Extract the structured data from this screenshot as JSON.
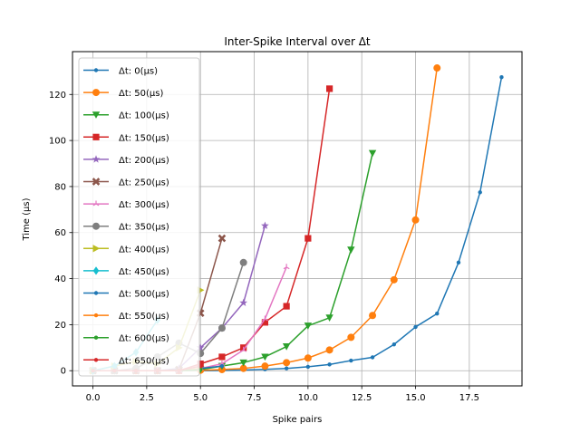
{
  "chart_data": {
    "type": "line",
    "title": "Inter-Spike Interval over Δt",
    "xlabel": "Spike pairs",
    "ylabel": "Time (μs)",
    "xlim": [
      -0.95,
      19.95
    ],
    "ylim": [
      -6.6,
      138.6
    ],
    "xticks": [
      0,
      2.5,
      5,
      7.5,
      10,
      12.5,
      15,
      17.5
    ],
    "xtick_labels": [
      "0.0",
      "2.5",
      "5.0",
      "7.5",
      "10.0",
      "12.5",
      "15.0",
      "17.5"
    ],
    "yticks": [
      0,
      20,
      40,
      60,
      80,
      100,
      120
    ],
    "ytick_labels": [
      "0",
      "20",
      "40",
      "60",
      "80",
      "100",
      "120"
    ],
    "grid": true,
    "legend_position": "upper-left",
    "series": [
      {
        "name": "Δt: 0(μs)",
        "color": "#1f77b4",
        "marker": "dot",
        "x": [
          0,
          1,
          2,
          3,
          4,
          5,
          6,
          7,
          8,
          9,
          10,
          11,
          12,
          13,
          14,
          15,
          16,
          17,
          18,
          19
        ],
        "y": [
          0,
          0,
          0,
          0,
          0,
          0,
          0.1,
          0.3,
          0.6,
          1,
          1.7,
          2.7,
          4.4,
          5.8,
          11.4,
          19,
          24.8,
          47,
          77.5,
          127.5
        ]
      },
      {
        "name": "Δt: 50(μs)",
        "color": "#ff7f0e",
        "marker": "circle",
        "x": [
          0,
          1,
          2,
          3,
          4,
          5,
          6,
          7,
          8,
          9,
          10,
          11,
          12,
          13,
          14,
          15,
          16
        ],
        "y": [
          0,
          0,
          0,
          0,
          0,
          0.2,
          0.5,
          1,
          2,
          3.5,
          5.5,
          9,
          14.5,
          24,
          39.5,
          65.5,
          131.5
        ]
      },
      {
        "name": "Δt: 100(μs)",
        "color": "#2ca02c",
        "marker": "triangle-down",
        "x": [
          0,
          1,
          2,
          3,
          4,
          5,
          6,
          7,
          8,
          9,
          10,
          11,
          12,
          13
        ],
        "y": [
          0,
          0,
          0,
          0,
          0,
          0.5,
          2,
          3.5,
          6,
          10.5,
          19.5,
          23,
          52.5,
          94.5
        ]
      },
      {
        "name": "Δt: 150(μs)",
        "color": "#d62728",
        "marker": "square",
        "x": [
          0,
          1,
          2,
          3,
          4,
          5,
          6,
          7,
          8,
          9,
          10,
          11
        ],
        "y": [
          0,
          0,
          0,
          0,
          0,
          3,
          6,
          10,
          21,
          28,
          57.5,
          122.5
        ]
      },
      {
        "name": "Δt: 200(μs)",
        "color": "#9467bd",
        "marker": "star",
        "x": [
          0,
          1,
          2,
          3,
          4,
          5,
          6,
          7,
          8
        ],
        "y": [
          0,
          0,
          0,
          0,
          1,
          10,
          18.5,
          29.5,
          63
        ]
      },
      {
        "name": "Δt: 250(μs)",
        "color": "#8c564b",
        "marker": "x",
        "x": [
          0,
          1,
          2,
          3,
          4,
          5,
          6
        ],
        "y": [
          0,
          0,
          0,
          0,
          0.5,
          25,
          57.5
        ]
      },
      {
        "name": "Δt: 300(μs)",
        "color": "#e377c2",
        "marker": "tri",
        "x": [
          0,
          1,
          2,
          3,
          4,
          5,
          6,
          7,
          8,
          9
        ],
        "y": [
          0,
          0,
          0,
          0,
          0,
          1,
          3,
          9,
          22.5,
          45
        ]
      },
      {
        "name": "Δt: 350(μs)",
        "color": "#7f7f7f",
        "marker": "circle",
        "x": [
          0,
          1,
          2,
          3,
          4,
          5,
          6,
          7
        ],
        "y": [
          0,
          0,
          1,
          6,
          12,
          7.5,
          18.5,
          47
        ]
      },
      {
        "name": "Δt: 400(μs)",
        "color": "#bcbd22",
        "marker": "triangle-right",
        "x": [
          0,
          1,
          2,
          3,
          4,
          5
        ],
        "y": [
          0,
          2,
          4,
          3,
          10,
          35
        ]
      },
      {
        "name": "Δt: 450(μs)",
        "color": "#17becf",
        "marker": "diamond",
        "x": [
          0,
          1,
          2,
          3
        ],
        "y": [
          0,
          2,
          8,
          22
        ]
      },
      {
        "name": "Δt: 500(μs)",
        "color": "#1f77b4",
        "marker": "dot",
        "x": [
          0,
          1,
          2,
          3,
          4,
          5,
          6
        ],
        "y": [
          0,
          0,
          0,
          0,
          0,
          1,
          2
        ]
      },
      {
        "name": "Δt: 550(μs)",
        "color": "#ff7f0e",
        "marker": "dot",
        "x": [
          0,
          1,
          2,
          3,
          4,
          5
        ],
        "y": [
          0,
          0,
          0,
          0,
          0,
          1
        ]
      },
      {
        "name": "Δt: 600(μs)",
        "color": "#2ca02c",
        "marker": "dot",
        "x": [
          0,
          1,
          2,
          3,
          4,
          5
        ],
        "y": [
          0,
          0,
          0,
          0,
          0,
          0.5
        ]
      },
      {
        "name": "Δt: 650(μs)",
        "color": "#d62728",
        "marker": "dot",
        "x": [
          0,
          1,
          2,
          3,
          4,
          5
        ],
        "y": [
          0,
          0,
          0,
          0,
          0,
          2
        ]
      }
    ]
  }
}
